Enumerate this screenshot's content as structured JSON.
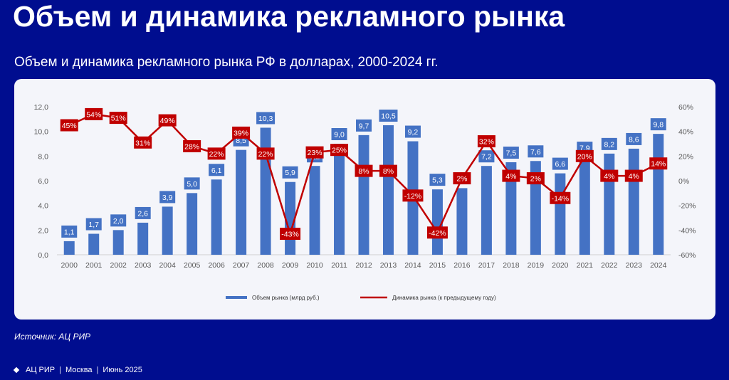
{
  "header": {
    "title": "Объем и динамика рекламного рынка",
    "subtitle": "Объем и динамика рекламного рынка РФ в долларах, 2000-2024 гг."
  },
  "source": "Источник: АЦ РИР",
  "footer": {
    "items": [
      "АЦ РИР",
      "Москва",
      "Июнь 2025"
    ],
    "separator": "|"
  },
  "colors": {
    "background": "#000d8f",
    "bar": "#4472c4",
    "line": "#c00000",
    "panel": "#f4f5fa"
  },
  "chart_data": {
    "type": "bar",
    "categories": [
      "2000",
      "2001",
      "2002",
      "2003",
      "2004",
      "2005",
      "2006",
      "2007",
      "2008",
      "2009",
      "2010",
      "2011",
      "2012",
      "2013",
      "2014",
      "2015",
      "2016",
      "2017",
      "2018",
      "2019",
      "2020",
      "2021",
      "2022",
      "2023",
      "2024"
    ],
    "series": [
      {
        "name": "Объем рынка (млрд руб.)",
        "type": "bar",
        "axis": "left",
        "values": [
          1.1,
          1.7,
          2.0,
          2.6,
          3.9,
          5.0,
          6.1,
          8.5,
          10.3,
          5.9,
          7.2,
          9.0,
          9.7,
          10.5,
          9.2,
          5.3,
          5.4,
          7.2,
          7.5,
          7.6,
          6.6,
          7.9,
          8.2,
          8.6,
          9.8
        ],
        "labels": [
          "1,1",
          "1,7",
          "2,0",
          "2,6",
          "3,9",
          "5,0",
          "6,1",
          "8,5",
          "10,3",
          "5,9",
          "7,2",
          "9,0",
          "9,7",
          "10,5",
          "9,2",
          "5,3",
          "",
          "7,2",
          "7,5",
          "7,6",
          "6,6",
          "7,9",
          "8,2",
          "8,6",
          "9,8"
        ]
      },
      {
        "name": "Динамика рынка (к предыдущему году)",
        "type": "line",
        "axis": "right",
        "values": [
          45,
          54,
          51,
          31,
          49,
          28,
          22,
          39,
          22,
          -43,
          23,
          25,
          8,
          8,
          -12,
          -42,
          2,
          32,
          4,
          2,
          -14,
          20,
          4,
          4,
          14
        ],
        "labels": [
          "45%",
          "54%",
          "51%",
          "31%",
          "49%",
          "28%",
          "22%",
          "39%",
          "22%",
          "-43%",
          "23%",
          "25%",
          "8%",
          "8%",
          "-12%",
          "-42%",
          "2%",
          "32%",
          "4%",
          "2%",
          "-14%",
          "20%",
          "4%",
          "4%",
          "14%"
        ]
      }
    ],
    "y_left": {
      "min": 0,
      "max": 12,
      "ticks": [
        "0,0",
        "2,0",
        "4,0",
        "6,0",
        "8,0",
        "10,0",
        "12,0"
      ]
    },
    "y_right": {
      "min": -60,
      "max": 60,
      "ticks": [
        "-60%",
        "-40%",
        "-20%",
        "0%",
        "20%",
        "40%",
        "60%"
      ]
    },
    "legend_position": "bottom",
    "grid": false
  }
}
